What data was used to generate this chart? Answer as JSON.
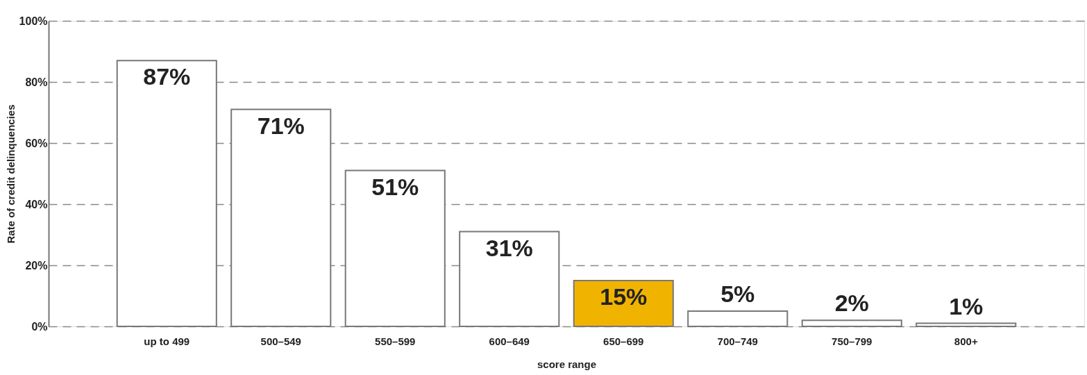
{
  "chart_data": {
    "type": "bar",
    "xlabel": "score range",
    "ylabel": "Rate of credit delinquencies",
    "categories": [
      "up to 499",
      "500–549",
      "550–599",
      "600–649",
      "650–699",
      "700–749",
      "750–799",
      "800+"
    ],
    "values": [
      87,
      71,
      51,
      31,
      15,
      5,
      2,
      1
    ],
    "colors": [
      "#ffffff",
      "#ffffff",
      "#ffffff",
      "#ffffff",
      "#f0b400",
      "#ffffff",
      "#ffffff",
      "#ffffff"
    ],
    "value_labels": [
      "87%",
      "71%",
      "51%",
      "31%",
      "15%",
      "5%",
      "2%",
      "1%"
    ],
    "ylim": [
      0,
      100
    ],
    "yticks": [
      {
        "value": 0,
        "label": "0%"
      },
      {
        "value": 20,
        "label": "20%"
      },
      {
        "value": 40,
        "label": "40%"
      },
      {
        "value": 60,
        "label": "60%"
      },
      {
        "value": 80,
        "label": "80%"
      },
      {
        "value": 100,
        "label": "100%"
      }
    ],
    "grid": "y"
  }
}
